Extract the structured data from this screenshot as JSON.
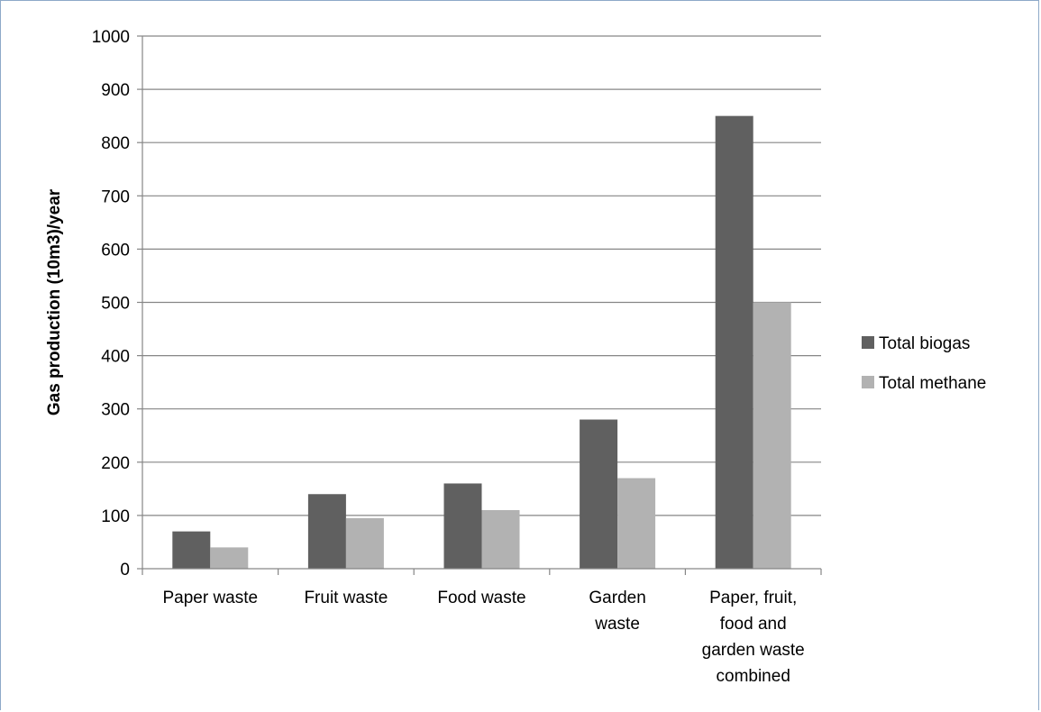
{
  "chart_data": {
    "type": "bar",
    "categories": [
      [
        "Paper waste"
      ],
      [
        "Fruit waste"
      ],
      [
        "Food waste"
      ],
      [
        "Garden",
        "waste"
      ],
      [
        "Paper, fruit,",
        "food and",
        "garden waste",
        "combined"
      ]
    ],
    "series": [
      {
        "name": "Total biogas",
        "values": [
          70,
          140,
          160,
          280,
          850
        ],
        "color": "#606060"
      },
      {
        "name": "Total methane",
        "values": [
          40,
          95,
          110,
          170,
          500
        ],
        "color": "#b2b2b2"
      }
    ],
    "title": "",
    "xlabel": "",
    "ylabel": "Gas production (10m3)/year",
    "ylim": [
      0,
      1000
    ],
    "yticks": [
      0,
      100,
      200,
      300,
      400,
      500,
      600,
      700,
      800,
      900,
      1000
    ],
    "grid": true,
    "legend_position": "right"
  }
}
